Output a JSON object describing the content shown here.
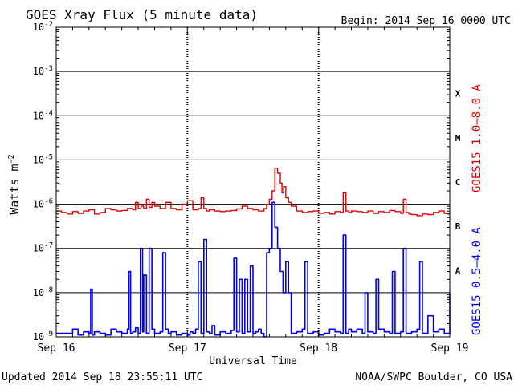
{
  "chart_data": {
    "type": "line",
    "title": "GOES Xray Flux (5 minute data)",
    "begin_label": "Begin:  2014 Sep 16 0000 UTC",
    "xlabel": "Universal Time",
    "ylabel": "Watts m",
    "ylabel_sup": "-2",
    "y_scale": "log",
    "ylim": [
      1e-09,
      0.01
    ],
    "xlim": [
      0,
      72
    ],
    "x_unit": "hours since 2014 Sep 16 00:00 UTC",
    "x_ticks": [
      {
        "x": 0,
        "label": "Sep 16"
      },
      {
        "x": 24,
        "label": "Sep 17"
      },
      {
        "x": 48,
        "label": "Sep 18"
      },
      {
        "x": 72,
        "label": "Sep 19"
      }
    ],
    "y_ticks": [
      {
        "exp": -9,
        "label": "10",
        "sup": "-9"
      },
      {
        "exp": -8,
        "label": "10",
        "sup": "-8"
      },
      {
        "exp": -7,
        "label": "10",
        "sup": "-7"
      },
      {
        "exp": -6,
        "label": "10",
        "sup": "-6"
      },
      {
        "exp": -5,
        "label": "10",
        "sup": "-5"
      },
      {
        "exp": -4,
        "label": "10",
        "sup": "-4"
      },
      {
        "exp": -3,
        "label": "10",
        "sup": "-3"
      },
      {
        "exp": -2,
        "label": "10",
        "sup": "-2"
      }
    ],
    "flare_classes": [
      {
        "label": "A",
        "exp": -8
      },
      {
        "label": "B",
        "exp": -7
      },
      {
        "label": "C",
        "exp": -6
      },
      {
        "label": "M",
        "exp": -5
      },
      {
        "label": "X",
        "exp": -4
      }
    ],
    "grid": true,
    "series": [
      {
        "name": "GOES15 1.0–8.0 A",
        "color": "#e00000",
        "x": [
          0,
          1,
          2,
          3,
          4,
          5,
          6,
          7,
          8,
          9,
          10,
          11,
          12,
          13,
          14,
          14.5,
          15,
          15.5,
          16,
          16.5,
          17,
          17.5,
          18,
          19,
          20,
          21,
          22,
          23,
          24,
          25,
          26,
          26.5,
          27,
          27.5,
          28,
          29,
          30,
          31,
          32,
          33,
          34,
          35,
          36,
          37,
          38,
          38.5,
          39,
          39.5,
          40,
          40.5,
          41,
          41.3,
          41.6,
          42,
          42.5,
          43,
          44,
          45,
          46,
          47,
          48,
          49,
          50,
          51,
          52,
          52.5,
          53,
          53.5,
          54,
          55,
          56,
          57,
          58,
          59,
          60,
          61,
          62,
          63,
          63.5,
          64,
          64.5,
          65,
          66,
          67,
          68,
          69,
          70,
          71,
          72
        ],
        "values": [
          7e-07,
          6.5e-07,
          6e-07,
          6.8e-07,
          6.2e-07,
          7e-07,
          7.5e-07,
          6e-07,
          6.5e-07,
          8e-07,
          7.5e-07,
          7e-07,
          7.2e-07,
          8e-07,
          7.5e-07,
          1.1e-06,
          8e-07,
          9e-07,
          8e-07,
          1.3e-06,
          8.5e-07,
          1.1e-06,
          9e-07,
          8e-07,
          1.1e-06,
          8e-07,
          7.5e-07,
          1e-06,
          1.2e-06,
          7.5e-07,
          8e-07,
          1.4e-06,
          8e-07,
          7e-07,
          7.5e-07,
          7e-07,
          6.8e-07,
          7e-07,
          7.2e-07,
          7.8e-07,
          9e-07,
          8e-07,
          7.5e-07,
          7e-07,
          8e-07,
          1e-06,
          1.3e-06,
          2e-06,
          6.5e-06,
          5e-06,
          3e-06,
          1.8e-06,
          2.5e-06,
          1.4e-06,
          1.1e-06,
          9e-07,
          7e-07,
          6.5e-07,
          6.8e-07,
          7e-07,
          6.2e-07,
          6.5e-07,
          6e-07,
          6.8e-07,
          6.5e-07,
          1.8e-06,
          7e-07,
          6.5e-07,
          7e-07,
          6.8e-07,
          6.5e-07,
          7e-07,
          6.2e-07,
          6.8e-07,
          6.5e-07,
          7.2e-07,
          6.8e-07,
          6.2e-07,
          1.3e-06,
          6.5e-07,
          6e-07,
          5.8e-07,
          5.5e-07,
          6e-07,
          5.8e-07,
          6.5e-07,
          7e-07,
          6.2e-07,
          6e-07
        ]
      },
      {
        "name": "GOES15 0.5–4.0 A",
        "color": "#0000ee",
        "x": [
          0,
          3,
          4,
          5,
          6,
          6.3,
          6.6,
          7,
          8,
          9,
          10,
          11,
          12,
          13,
          13.3,
          13.6,
          14,
          14.5,
          15,
          15.4,
          15.8,
          16,
          16.5,
          17,
          17.5,
          18,
          19,
          19.5,
          20,
          20.5,
          21,
          22,
          23,
          24,
          24.5,
          25,
          25.5,
          26,
          26.5,
          27,
          27.5,
          28,
          28.5,
          29,
          30,
          31,
          32,
          32.5,
          33,
          33.5,
          34,
          34.5,
          35,
          35.5,
          36,
          36.5,
          37,
          37.5,
          38,
          38.5,
          39,
          39.5,
          40,
          40.5,
          41,
          41.5,
          42,
          42.5,
          43,
          44,
          45,
          45.5,
          46,
          47,
          48,
          49,
          50,
          51,
          52,
          52.5,
          53,
          53.5,
          54,
          55,
          56,
          56.5,
          57,
          58,
          58.5,
          59,
          60,
          61,
          61.5,
          62,
          63,
          63.5,
          64,
          65,
          66,
          66.5,
          67,
          68,
          69,
          70,
          71,
          72
        ],
        "values": [
          1.2e-09,
          1.5e-09,
          1.1e-09,
          1.3e-09,
          1.2e-09,
          1.2e-08,
          1.1e-09,
          1.3e-09,
          1.2e-09,
          1.1e-09,
          1.5e-09,
          1.3e-09,
          1.2e-09,
          1.5e-09,
          3e-08,
          1.2e-09,
          1.3e-09,
          1.6e-09,
          1.2e-09,
          1e-07,
          1.3e-09,
          2.5e-08,
          1.2e-09,
          1e-07,
          1.5e-09,
          1.2e-09,
          1.3e-09,
          8e-08,
          1.5e-09,
          1.2e-09,
          1.3e-09,
          1.1e-09,
          1.2e-09,
          1.1e-09,
          1.3e-09,
          1.2e-09,
          1.5e-09,
          5e-08,
          1.2e-09,
          1.6e-07,
          1.3e-09,
          1.2e-09,
          1.8e-09,
          1.1e-09,
          1.3e-09,
          1.2e-09,
          1.4e-09,
          6e-08,
          1.3e-09,
          2e-08,
          1.2e-09,
          2e-08,
          1.3e-09,
          4e-08,
          1.2e-09,
          1.3e-09,
          1.5e-09,
          1.2e-09,
          1e-09,
          8e-08,
          1e-07,
          1.1e-06,
          3e-07,
          1e-07,
          3e-08,
          1e-08,
          5e-08,
          1e-08,
          1.2e-09,
          1.3e-09,
          1.5e-09,
          5e-08,
          1.2e-09,
          1.3e-09,
          1.1e-09,
          1.2e-09,
          1.5e-09,
          1.3e-09,
          1.2e-09,
          2e-07,
          1.2e-09,
          1.5e-09,
          1.3e-09,
          1.5e-09,
          1.2e-09,
          1e-08,
          1.3e-09,
          1.2e-09,
          2e-08,
          1.5e-09,
          1.3e-09,
          1.2e-09,
          3e-08,
          1.2e-09,
          1.3e-09,
          1e-07,
          1.2e-09,
          1.3e-09,
          1.5e-09,
          5e-08,
          1.2e-09,
          3e-09,
          1.3e-09,
          1.5e-09,
          1.2e-09,
          1e-08
        ]
      }
    ]
  },
  "footer": {
    "updated": "Updated 2014 Sep 18 23:55:11 UTC",
    "credit": "NOAA/SWPC Boulder, CO USA"
  }
}
